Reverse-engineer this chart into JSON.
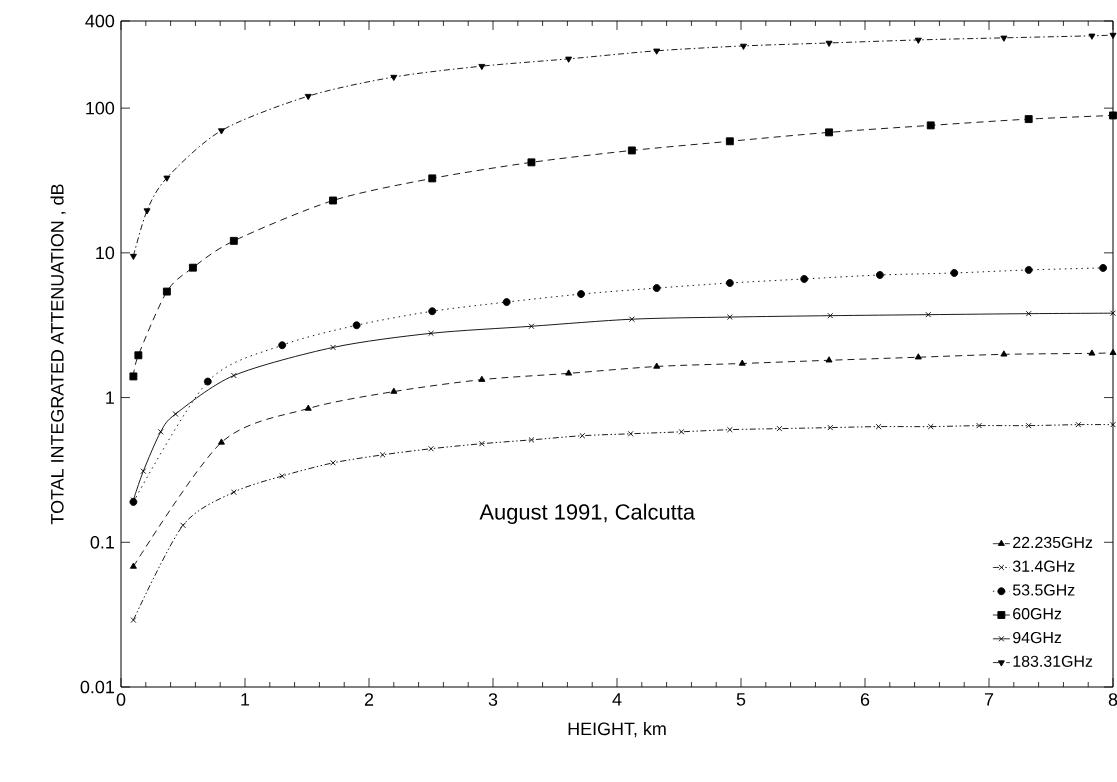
{
  "chart_data": {
    "type": "line",
    "xlabel": "HEIGHT,  km",
    "ylabel": "TOTAL INTEGRATED ATTENUATION , dB",
    "annotations": [
      "August 1991, Calcutta"
    ],
    "log": "y",
    "xlim": [
      0,
      8
    ],
    "ylim": [
      0.01,
      400
    ],
    "xticks": [
      0,
      1,
      2,
      3,
      4,
      5,
      6,
      7,
      8
    ],
    "yticks": [
      0.01,
      0.1,
      1,
      10,
      100,
      400
    ],
    "grid": false,
    "legend": "bottom right",
    "series": [
      {
        "name": "22.235GHz",
        "color": "#000000",
        "marker": "triangle",
        "line_style": "dashed",
        "x": [
          0.1,
          0.81,
          1.51,
          2.2,
          2.91,
          3.61,
          4.32,
          5.01,
          5.71,
          6.43,
          7.12,
          7.83,
          8
        ],
        "values": [
          0.068,
          0.49,
          0.84,
          1.1,
          1.33,
          1.47,
          1.64,
          1.72,
          1.81,
          1.9,
          1.99,
          2.02,
          2.04
        ]
      },
      {
        "name": "31.4GHz",
        "color": "#000000",
        "marker": "cross",
        "line_style": "dashdotdot",
        "x": [
          0.1,
          0.5,
          0.91,
          1.3,
          1.71,
          2.11,
          2.5,
          2.91,
          3.31,
          3.72,
          4.11,
          4.52,
          4.91,
          5.31,
          5.72,
          6.11,
          6.53,
          6.92,
          7.32,
          7.72,
          8
        ],
        "values": [
          0.029,
          0.131,
          0.222,
          0.287,
          0.354,
          0.402,
          0.443,
          0.48,
          0.51,
          0.545,
          0.562,
          0.58,
          0.6,
          0.61,
          0.62,
          0.63,
          0.63,
          0.64,
          0.64,
          0.65,
          0.65
        ]
      },
      {
        "name": "53.5GHz",
        "color": "#000000",
        "marker": "circle",
        "line_style": "dotted",
        "x": [
          0.1,
          0.7,
          1.3,
          1.9,
          2.51,
          3.11,
          3.71,
          4.32,
          4.91,
          5.51,
          6.12,
          6.72,
          7.32,
          7.92
        ],
        "values": [
          0.19,
          1.29,
          2.3,
          3.16,
          3.95,
          4.57,
          5.19,
          5.71,
          6.19,
          6.6,
          7.03,
          7.26,
          7.62,
          7.87
        ]
      },
      {
        "name": "60GHz",
        "color": "#000000",
        "marker": "square",
        "line_style": "dashed",
        "x": [
          0.1,
          0.14,
          0.37,
          0.58,
          0.91,
          1.71,
          2.51,
          3.31,
          4.12,
          4.91,
          5.71,
          6.53,
          7.32,
          8
        ],
        "values": [
          1.4,
          1.96,
          5.4,
          7.9,
          12.1,
          23,
          32.7,
          42.2,
          51,
          59,
          68,
          76,
          84,
          89
        ]
      },
      {
        "name": "94GHz",
        "color": "#000000",
        "marker": "cross",
        "line_style": "solid",
        "x": [
          0.1,
          0.18,
          0.32,
          0.44,
          0.91,
          1.71,
          2.5,
          3.31,
          4.12,
          4.91,
          5.72,
          6.51,
          7.32,
          8
        ],
        "values": [
          0.196,
          0.31,
          0.58,
          0.77,
          1.42,
          2.22,
          2.78,
          3.11,
          3.48,
          3.6,
          3.68,
          3.74,
          3.8,
          3.83
        ]
      },
      {
        "name": "183.31GHz",
        "color": "#000000",
        "marker": "triangle-down",
        "line_style": "dashdot",
        "x": [
          0.1,
          0.21,
          0.37,
          0.81,
          1.51,
          2.2,
          2.91,
          3.61,
          4.32,
          5.02,
          5.71,
          6.43,
          7.12,
          7.83,
          8
        ],
        "values": [
          9.5,
          19.6,
          33,
          70,
          121,
          164,
          195,
          219,
          249,
          269,
          282,
          296,
          306,
          316,
          320
        ]
      }
    ]
  }
}
